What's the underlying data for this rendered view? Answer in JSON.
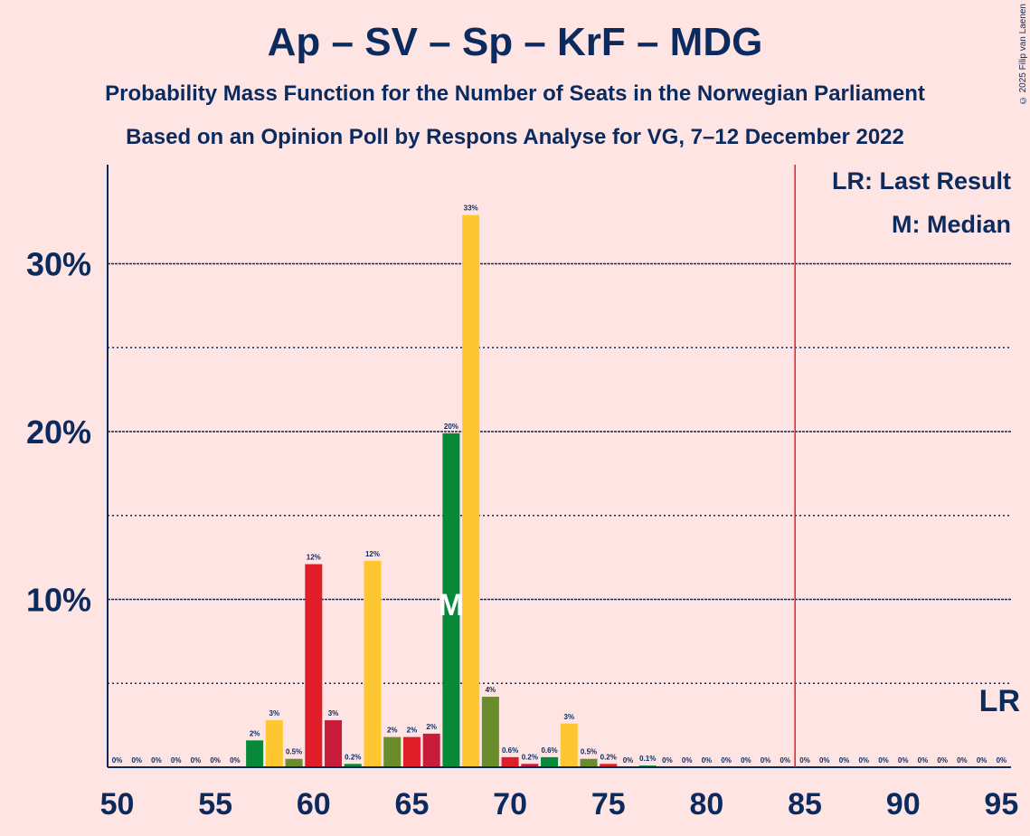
{
  "title": "Ap – SV – Sp – KrF – MDG",
  "subtitle1": "Probability Mass Function for the Number of Seats in the Norwegian Parliament",
  "subtitle2": "Based on an Opinion Poll by Respons Analyse for VG, 7–12 December 2022",
  "copyright": "© 2025 Filip van Laenen",
  "legend": {
    "lr": "LR: Last Result",
    "m": "M: Median"
  },
  "lr_marker_label": "LR",
  "median_marker_label": "M",
  "colors": {
    "background": "#ffe4e4",
    "text": "#0b2a5e",
    "lr_line": "#e0202a",
    "Ap": "#e01e2a",
    "Sp": "#fec731",
    "SV": "#6a8c2c",
    "MDG": "#068a3a",
    "KrF": "#c81c3a"
  },
  "chart_data": {
    "type": "bar",
    "xlabel": "",
    "ylabel": "",
    "xlim": [
      50,
      95
    ],
    "ylim": [
      0,
      35
    ],
    "x_ticks": [
      50,
      55,
      60,
      65,
      70,
      75,
      80,
      85,
      90,
      95
    ],
    "y_ticks": [
      {
        "value": 10,
        "label": "10%"
      },
      {
        "value": 20,
        "label": "20%"
      },
      {
        "value": 30,
        "label": "30%"
      }
    ],
    "dotted_gridlines": [
      5,
      15,
      25
    ],
    "last_result": 85,
    "median": 67,
    "bars": [
      {
        "x": 50,
        "value": 0,
        "label": "0%",
        "color": "Ap"
      },
      {
        "x": 51,
        "value": 0,
        "label": "0%",
        "color": "Ap"
      },
      {
        "x": 52,
        "value": 0,
        "label": "0%",
        "color": "Ap"
      },
      {
        "x": 53,
        "value": 0,
        "label": "0%",
        "color": "Ap"
      },
      {
        "x": 54,
        "value": 0,
        "label": "0%",
        "color": "Ap"
      },
      {
        "x": 55,
        "value": 0,
        "label": "0%",
        "color": "Ap"
      },
      {
        "x": 56,
        "value": 0,
        "label": "0%",
        "color": "Ap"
      },
      {
        "x": 57,
        "value": 1.6,
        "label": "2%",
        "color": "MDG"
      },
      {
        "x": 58,
        "value": 2.8,
        "label": "3%",
        "color": "Sp"
      },
      {
        "x": 59,
        "value": 0.5,
        "label": "0.5%",
        "color": "SV"
      },
      {
        "x": 60,
        "value": 12.1,
        "label": "12%",
        "color": "Ap"
      },
      {
        "x": 61,
        "value": 2.8,
        "label": "3%",
        "color": "KrF"
      },
      {
        "x": 62,
        "value": 0.2,
        "label": "0.2%",
        "color": "MDG"
      },
      {
        "x": 63,
        "value": 12.3,
        "label": "12%",
        "color": "Sp"
      },
      {
        "x": 64,
        "value": 1.8,
        "label": "2%",
        "color": "SV"
      },
      {
        "x": 65,
        "value": 1.8,
        "label": "2%",
        "color": "Ap"
      },
      {
        "x": 66,
        "value": 2.0,
        "label": "2%",
        "color": "KrF"
      },
      {
        "x": 67,
        "value": 19.9,
        "label": "20%",
        "color": "MDG"
      },
      {
        "x": 68,
        "value": 32.9,
        "label": "33%",
        "color": "Sp"
      },
      {
        "x": 69,
        "value": 4.2,
        "label": "4%",
        "color": "SV"
      },
      {
        "x": 70,
        "value": 0.6,
        "label": "0.6%",
        "color": "Ap"
      },
      {
        "x": 71,
        "value": 0.2,
        "label": "0.2%",
        "color": "KrF"
      },
      {
        "x": 72,
        "value": 0.6,
        "label": "0.6%",
        "color": "MDG"
      },
      {
        "x": 73,
        "value": 2.6,
        "label": "3%",
        "color": "Sp"
      },
      {
        "x": 74,
        "value": 0.5,
        "label": "0.5%",
        "color": "SV"
      },
      {
        "x": 75,
        "value": 0.2,
        "label": "0.2%",
        "color": "Ap"
      },
      {
        "x": 76,
        "value": 0,
        "label": "0%",
        "color": "KrF"
      },
      {
        "x": 77,
        "value": 0.1,
        "label": "0.1%",
        "color": "MDG"
      },
      {
        "x": 78,
        "value": 0,
        "label": "0%",
        "color": "Sp"
      },
      {
        "x": 79,
        "value": 0,
        "label": "0%",
        "color": "SV"
      },
      {
        "x": 80,
        "value": 0,
        "label": "0%",
        "color": "Ap"
      },
      {
        "x": 81,
        "value": 0,
        "label": "0%",
        "color": "KrF"
      },
      {
        "x": 82,
        "value": 0,
        "label": "0%",
        "color": "MDG"
      },
      {
        "x": 83,
        "value": 0,
        "label": "0%",
        "color": "Sp"
      },
      {
        "x": 84,
        "value": 0,
        "label": "0%",
        "color": "SV"
      },
      {
        "x": 85,
        "value": 0,
        "label": "0%",
        "color": "Ap"
      },
      {
        "x": 86,
        "value": 0,
        "label": "0%",
        "color": "KrF"
      },
      {
        "x": 87,
        "value": 0,
        "label": "0%",
        "color": "MDG"
      },
      {
        "x": 88,
        "value": 0,
        "label": "0%",
        "color": "Sp"
      },
      {
        "x": 89,
        "value": 0,
        "label": "0%",
        "color": "SV"
      },
      {
        "x": 90,
        "value": 0,
        "label": "0%",
        "color": "Ap"
      },
      {
        "x": 91,
        "value": 0,
        "label": "0%",
        "color": "KrF"
      },
      {
        "x": 92,
        "value": 0,
        "label": "0%",
        "color": "MDG"
      },
      {
        "x": 93,
        "value": 0,
        "label": "0%",
        "color": "Sp"
      },
      {
        "x": 94,
        "value": 0,
        "label": "0%",
        "color": "SV"
      },
      {
        "x": 95,
        "value": 0,
        "label": "0%",
        "color": "Ap"
      }
    ]
  }
}
